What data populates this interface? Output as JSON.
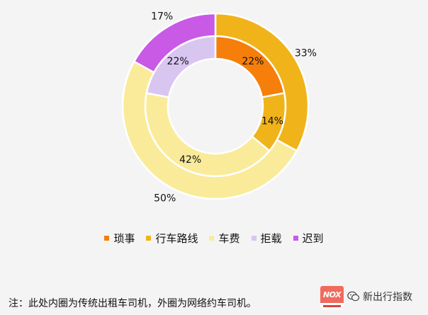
{
  "chart_data": {
    "type": "pie",
    "style": "double-donut",
    "categories": [
      "琐事",
      "行车路线",
      "车费",
      "拒载",
      "迟到"
    ],
    "colors": [
      "#f57f0a",
      "#f0b31a",
      "#faeb9a",
      "#d9c6f0",
      "#c85ae6"
    ],
    "series": [
      {
        "ring": "inner",
        "values": [
          22,
          14,
          42,
          22,
          0
        ]
      },
      {
        "ring": "outer",
        "values": [
          0,
          33,
          50,
          0,
          17
        ]
      }
    ],
    "legend_position": "bottom"
  },
  "legend": {
    "items": [
      {
        "label": "琐事",
        "color": "#f57f0a"
      },
      {
        "label": "行车路线",
        "color": "#f0b31a"
      },
      {
        "label": "车费",
        "color": "#faeb9a"
      },
      {
        "label": "拒载",
        "color": "#d9c6f0"
      },
      {
        "label": "迟到",
        "color": "#c85ae6"
      }
    ]
  },
  "note": "注：此处内圈为传统出租车司机，外圈为网络约车司机。",
  "watermark": {
    "icon": "wechat-icon",
    "text": "新出行指数"
  },
  "brand": {
    "icon": "nox-logo",
    "mark": "NOX"
  }
}
